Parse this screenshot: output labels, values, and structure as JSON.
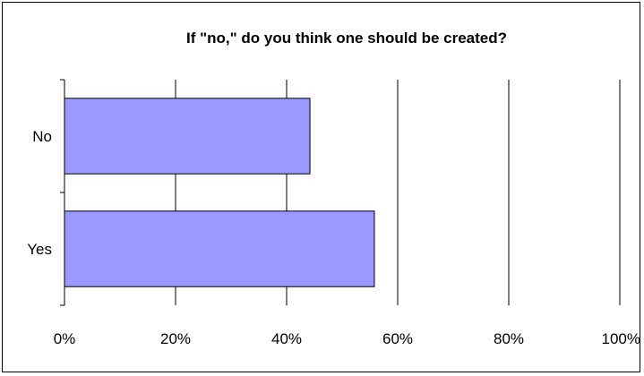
{
  "chart_data": {
    "type": "bar",
    "orientation": "horizontal",
    "title": "If \"no,\" do you think one should be created?",
    "xlabel": "",
    "ylabel": "",
    "categories": [
      "No",
      "Yes"
    ],
    "values": [
      44.2,
      55.8
    ],
    "value_unit": "%",
    "xlim": [
      0,
      100
    ],
    "xticks": [
      0,
      20,
      40,
      60,
      80,
      100
    ],
    "xtick_labels": [
      "0%",
      "20%",
      "40%",
      "60%",
      "80%",
      "100%"
    ],
    "grid": true,
    "legend": "none",
    "bar_color": "#9999ff",
    "bar_edge_color": "#000000"
  }
}
